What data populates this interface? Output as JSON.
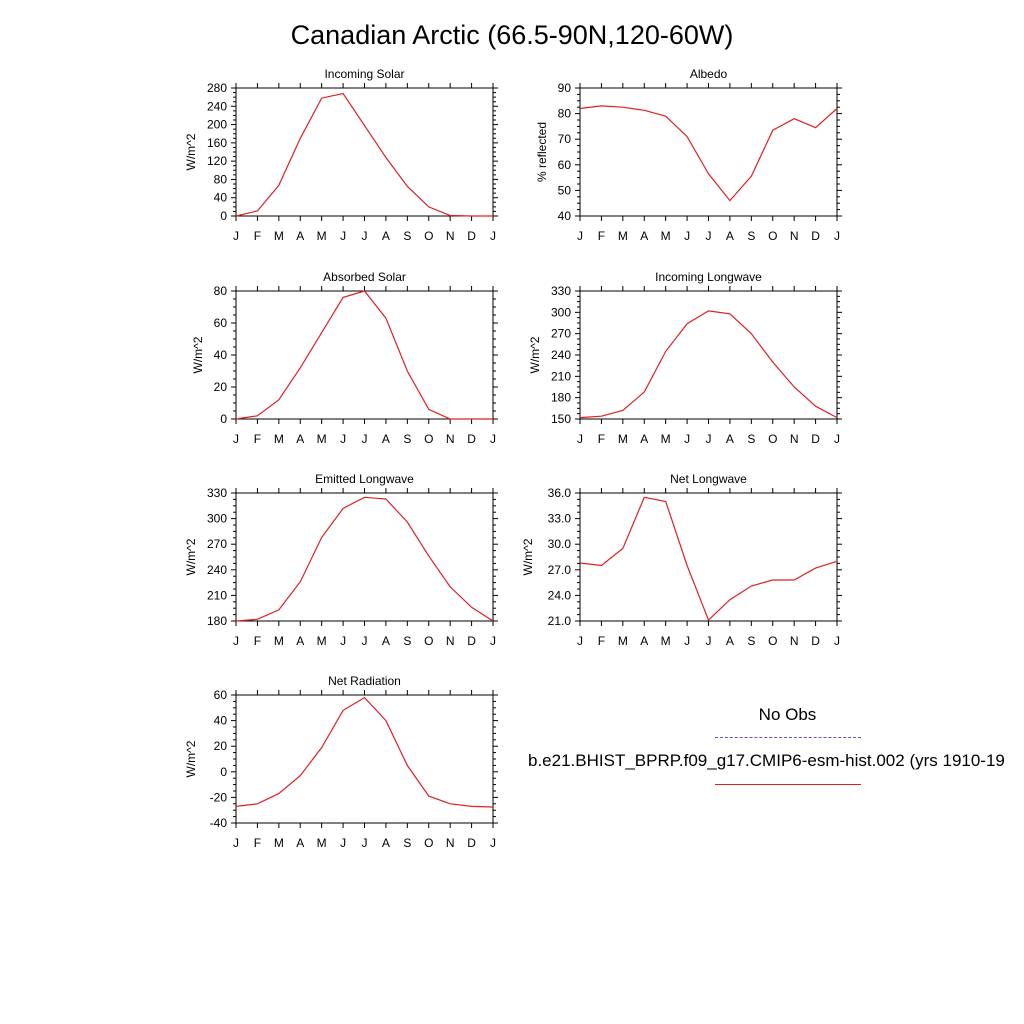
{
  "title": "Canadian Arctic (66.5-90N,120-60W)",
  "months": [
    "J",
    "F",
    "M",
    "A",
    "M",
    "J",
    "J",
    "A",
    "S",
    "O",
    "N",
    "D",
    "J"
  ],
  "colors": {
    "model": "#e02020",
    "obs": "#5555dd"
  },
  "legend": {
    "obs_label": "No Obs",
    "model_label": "b.e21.BHIST_BPRP.f09_g17.CMIP6-esm-hist.002 (yrs 1910-19"
  },
  "chart_data": [
    {
      "type": "line",
      "title": "Incoming Solar",
      "ylabel": "W/m^2",
      "categories": [
        "J",
        "F",
        "M",
        "A",
        "M",
        "J",
        "J",
        "A",
        "S",
        "O",
        "N",
        "D",
        "J"
      ],
      "ylim": [
        0,
        280
      ],
      "yticks": [
        "0",
        "40",
        "80",
        "120",
        "160",
        "200",
        "240",
        "280"
      ],
      "series": [
        {
          "values": [
            0,
            11,
            67,
            170,
            258,
            268,
            198,
            128,
            65,
            20,
            1,
            0,
            0
          ]
        }
      ]
    },
    {
      "type": "line",
      "title": "Albedo",
      "ylabel": "% reflected",
      "categories": [
        "J",
        "F",
        "M",
        "A",
        "M",
        "J",
        "J",
        "A",
        "S",
        "O",
        "N",
        "D",
        "J"
      ],
      "ylim": [
        40,
        90
      ],
      "yticks": [
        "40",
        "50",
        "60",
        "70",
        "80",
        "90"
      ],
      "series": [
        {
          "values": [
            82,
            83,
            82.5,
            81.3,
            79,
            71,
            56.5,
            46,
            55.5,
            73.5,
            78,
            74.5,
            82
          ]
        }
      ]
    },
    {
      "type": "line",
      "title": "Absorbed Solar",
      "ylabel": "W/m^2",
      "categories": [
        "J",
        "F",
        "M",
        "A",
        "M",
        "J",
        "J",
        "A",
        "S",
        "O",
        "N",
        "D",
        "J"
      ],
      "ylim": [
        0,
        80
      ],
      "yticks": [
        "0",
        "20",
        "40",
        "60",
        "80"
      ],
      "series": [
        {
          "values": [
            0,
            2,
            12,
            32,
            54,
            76,
            80,
            63,
            30,
            6,
            0,
            0,
            0
          ]
        }
      ]
    },
    {
      "type": "line",
      "title": "Incoming Longwave",
      "ylabel": "W/m^2",
      "categories": [
        "J",
        "F",
        "M",
        "A",
        "M",
        "J",
        "J",
        "A",
        "S",
        "O",
        "N",
        "D",
        "J"
      ],
      "ylim": [
        150,
        330
      ],
      "yticks": [
        "150",
        "180",
        "210",
        "240",
        "270",
        "300",
        "330"
      ],
      "series": [
        {
          "values": [
            152,
            154,
            162,
            188,
            245,
            284,
            302,
            298,
            270,
            230,
            195,
            168,
            152
          ]
        }
      ]
    },
    {
      "type": "line",
      "title": "Emitted Longwave",
      "ylabel": "W/m^2",
      "categories": [
        "J",
        "F",
        "M",
        "A",
        "M",
        "J",
        "J",
        "A",
        "S",
        "O",
        "N",
        "D",
        "J"
      ],
      "ylim": [
        180,
        330
      ],
      "yticks": [
        "180",
        "210",
        "240",
        "270",
        "300",
        "330"
      ],
      "series": [
        {
          "values": [
            180,
            182,
            193,
            226,
            278,
            312,
            325,
            323,
            296,
            256,
            220,
            196,
            180
          ]
        }
      ]
    },
    {
      "type": "line",
      "title": "Net Longwave",
      "ylabel": "W/m^2",
      "categories": [
        "J",
        "F",
        "M",
        "A",
        "M",
        "J",
        "J",
        "A",
        "S",
        "O",
        "N",
        "D",
        "J"
      ],
      "ylim": [
        21,
        36
      ],
      "yticks": [
        "21.0",
        "24.0",
        "27.0",
        "30.0",
        "33.0",
        "36.0"
      ],
      "series": [
        {
          "values": [
            27.8,
            27.5,
            29.5,
            35.5,
            35,
            27.5,
            21.1,
            23.5,
            25.1,
            25.8,
            25.8,
            27.2,
            28
          ]
        }
      ]
    },
    {
      "type": "line",
      "title": "Net Radiation",
      "ylabel": "W/m^2",
      "categories": [
        "J",
        "F",
        "M",
        "A",
        "M",
        "J",
        "J",
        "A",
        "S",
        "O",
        "N",
        "D",
        "J"
      ],
      "ylim": [
        -40,
        60
      ],
      "yticks": [
        "-40",
        "-20",
        "0",
        "20",
        "40",
        "60"
      ],
      "series": [
        {
          "values": [
            -27,
            -25,
            -17,
            -3,
            19,
            48,
            58,
            40,
            5,
            -19,
            -25,
            -27,
            -27.5
          ]
        }
      ]
    }
  ]
}
